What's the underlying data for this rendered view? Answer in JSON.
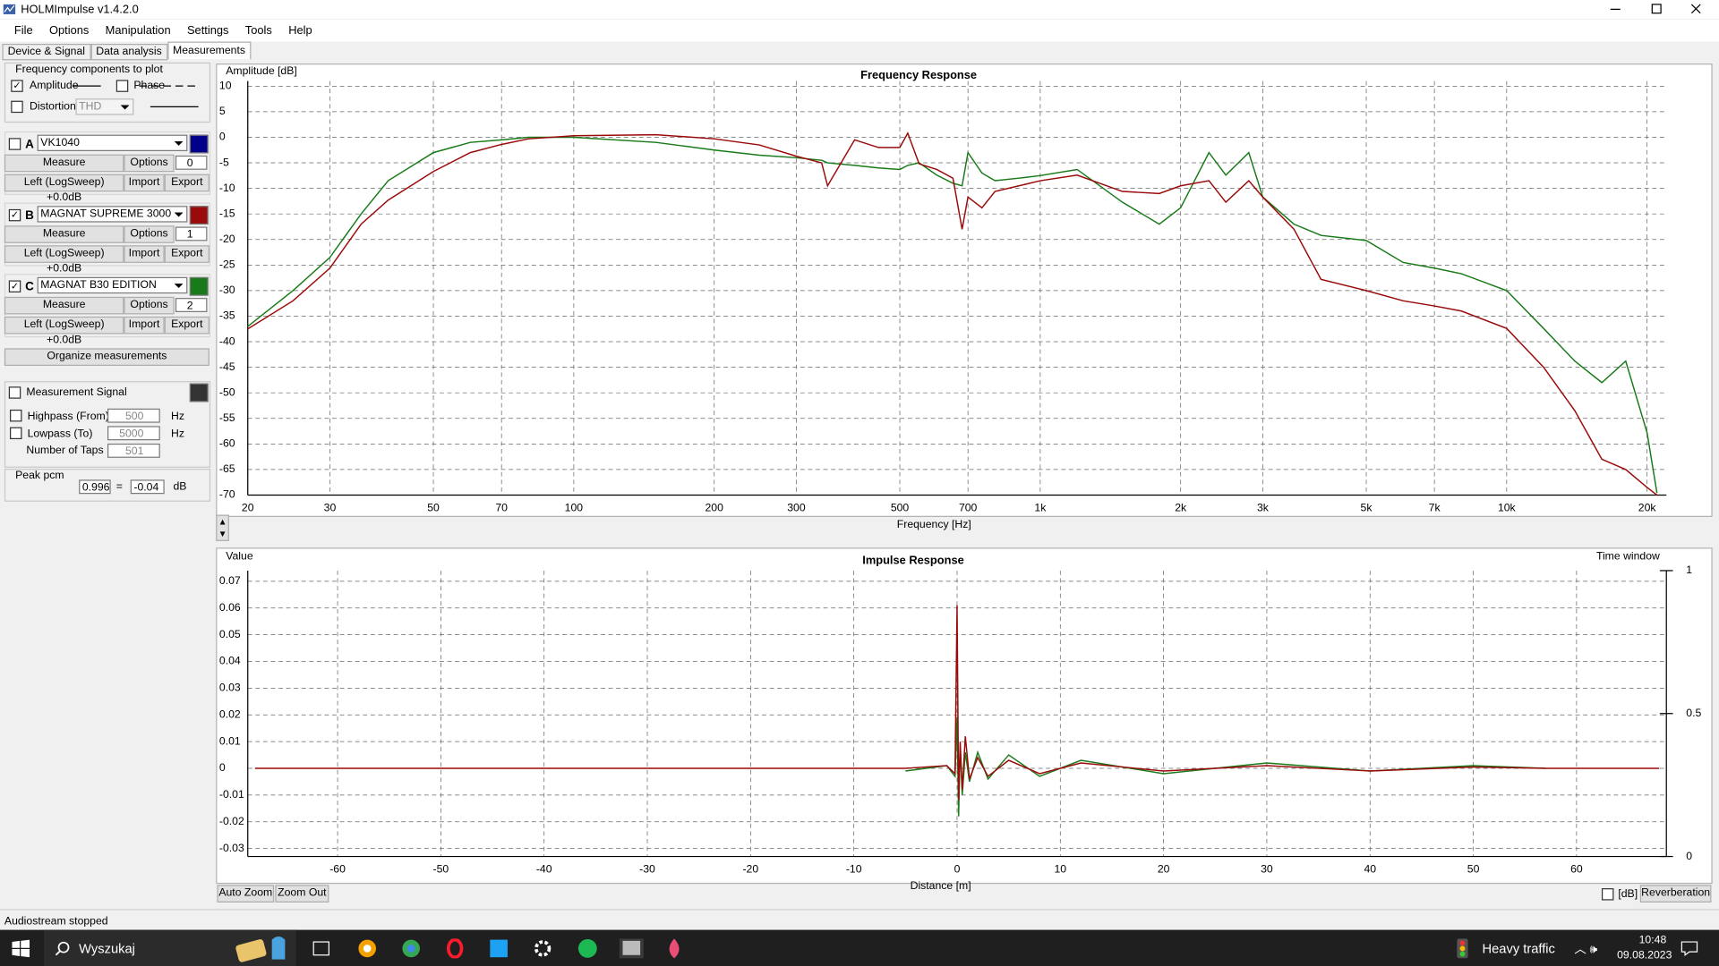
{
  "window": {
    "title": "HOLMImpulse v1.4.2.0"
  },
  "menu": [
    "File",
    "Options",
    "Manipulation",
    "Settings",
    "Tools",
    "Help"
  ],
  "tabs": [
    "Device & Signal",
    "Data analysis",
    "Measurements"
  ],
  "components": {
    "title": "Frequency components to plot",
    "amplitude": "Amplitude",
    "phase": "Phase",
    "distortion": "Distortion",
    "distortion_type": "THD"
  },
  "buttons": {
    "measure": "Measure",
    "options": "Options",
    "import": "Import",
    "export": "Export"
  },
  "measurements": [
    {
      "letter": "A",
      "name": "VK1040",
      "number": 0,
      "channel": "Left (LogSweep) +0.0dB",
      "color": "#00008b"
    },
    {
      "letter": "B",
      "number": 1,
      "channel": "Left (LogSweep) +0.0dB"
    },
    {
      "letter": "C",
      "number": 2,
      "channel": "Left (LogSweep) +0.0dB"
    }
  ],
  "organize": "Organize measurements",
  "signal": {
    "label": "Measurement Signal",
    "highpass": "Highpass (From)",
    "highpass_value": 500,
    "lowpass": "Lowpass (To)",
    "lowpass_value": 5000,
    "taps": "Number of Taps",
    "taps_value": 501,
    "unit": "Hz"
  },
  "peak": {
    "label": "Peak pcm",
    "value": 0.996,
    "eq": "=",
    "db": -0.04,
    "unit": "dB"
  },
  "chart_buttons": [
    "Auto Zoom",
    "Zoom Out"
  ],
  "db_check": "[dB]",
  "reverberation": "Reverberation",
  "status": "Audiostream stopped",
  "taskbar": {
    "search": "Wyszukaj",
    "weather": "Heavy traffic",
    "time": "10:48",
    "date": "09.08.2023"
  },
  "chart_data": [
    {
      "type": "line",
      "title": "Frequency Response",
      "y_label": "Amplitude [dB]",
      "x_label": "Frequency [Hz]",
      "xscale": "log",
      "grid": true,
      "xlim": [
        20,
        22000
      ],
      "xticks": [
        20,
        30,
        50,
        70,
        100,
        200,
        300,
        500,
        700,
        {
          "value": 1000,
          "label": "1k"
        },
        {
          "value": 2000,
          "label": "2k"
        },
        {
          "value": 3000,
          "label": "3k"
        },
        {
          "value": 5000,
          "label": "5k"
        },
        {
          "value": 7000,
          "label": "7k"
        },
        {
          "value": 10000,
          "label": "10k"
        },
        {
          "value": 20000,
          "label": "20k"
        }
      ],
      "ylim": [
        -70,
        11
      ],
      "yticks": [
        10,
        5,
        0,
        -5,
        -10,
        -15,
        -20,
        -25,
        -30,
        -35,
        -40,
        -45,
        -50,
        -55,
        -60,
        -65,
        -70
      ],
      "x": [
        20,
        25,
        30,
        35,
        40,
        50,
        60,
        70,
        80,
        100,
        150,
        200,
        250,
        300,
        340,
        350,
        400,
        450,
        500,
        520,
        550,
        600,
        650,
        680,
        700,
        750,
        800,
        900,
        1000,
        1200,
        1500,
        1800,
        2000,
        2300,
        2500,
        2800,
        3000,
        3500,
        4000,
        5000,
        6000,
        7000,
        8000,
        10000,
        12000,
        14000,
        16000,
        18000,
        20000,
        21000
      ],
      "series": [
        {
          "name": "MAGNAT SUPREME 3000",
          "color": "#9a0a0a",
          "values": [
            -37.5,
            -32,
            -25.6,
            -17,
            -12.3,
            -6.7,
            -3,
            -1.4,
            -0.3,
            0.3,
            0.5,
            -0.3,
            -1.5,
            -3.7,
            -5,
            -9.5,
            -0.5,
            -2,
            -2,
            0.8,
            -5.2,
            -6.3,
            -8,
            -18,
            -11.7,
            -13.8,
            -10.6,
            -9.5,
            -8.5,
            -7.4,
            -10.6,
            -11,
            -9.5,
            -8.5,
            -12.7,
            -8.5,
            -11.7,
            -18,
            -27.8,
            -30,
            -32,
            -33,
            -34,
            -37.4,
            -45,
            -53.5,
            -63,
            -65,
            -68.5,
            -70
          ]
        },
        {
          "name": "MAGNAT B30 EDITION",
          "color": "#187a18",
          "values": [
            -37,
            -30,
            -23.5,
            -15,
            -8.5,
            -3,
            -1,
            -0.5,
            0,
            0,
            -1,
            -2.5,
            -3.5,
            -4,
            -4.5,
            -5,
            -5.5,
            -6,
            -6.3,
            -5.5,
            -5,
            -7.4,
            -9,
            -9.5,
            -3,
            -7,
            -8.5,
            -8,
            -7.5,
            -6.3,
            -12.7,
            -17,
            -13.8,
            -3,
            -7.4,
            -3,
            -11.7,
            -17,
            -19.2,
            -20.2,
            -24.5,
            -25.6,
            -26.7,
            -30,
            -37.4,
            -43.8,
            -48,
            -43.8,
            -57.8,
            -69.6
          ]
        }
      ]
    },
    {
      "type": "line",
      "title": "Impulse Response",
      "y_label": "Value",
      "y2_label": "Time window",
      "x_label": "Distance [m]",
      "grid": true,
      "xlim": [
        -68.7,
        68.7
      ],
      "xticks": [
        -60,
        -50,
        -40,
        -30,
        -20,
        -10,
        0,
        10,
        20,
        30,
        40,
        50,
        60
      ],
      "ylim": [
        -0.033,
        0.074
      ],
      "yticks": [
        0.07,
        0.06,
        0.05,
        0.04,
        0.03,
        0.02,
        0.01,
        0,
        -0.01,
        -0.02,
        -0.03
      ],
      "y2lim": [
        0,
        1
      ],
      "y2ticks": [
        1,
        0.5,
        0
      ],
      "x": [
        -68,
        -5,
        -1,
        -0.2,
        0,
        0.15,
        0.3,
        0.5,
        0.8,
        1.2,
        2,
        3,
        5,
        8,
        12,
        20,
        30,
        40,
        50,
        57,
        68
      ],
      "series": [
        {
          "name": "MAGNAT SUPREME 3000",
          "color": "#9a0a0a",
          "values": [
            0,
            0,
            0.001,
            -0.002,
            0.061,
            -0.012,
            0.01,
            -0.008,
            0.012,
            -0.004,
            0.004,
            -0.003,
            0.003,
            -0.002,
            0.002,
            -0.001,
            0.001,
            -0.001,
            0.0005,
            0,
            0
          ]
        },
        {
          "name": "MAGNAT B30 EDITION",
          "color": "#187a18",
          "values": [
            null,
            -0.001,
            0.001,
            -0.003,
            0.019,
            -0.018,
            0.008,
            -0.01,
            0.006,
            -0.005,
            0.006,
            -0.004,
            0.005,
            -0.003,
            0.003,
            -0.002,
            0.002,
            -0.001,
            0.001,
            0,
            null
          ]
        }
      ]
    }
  ]
}
